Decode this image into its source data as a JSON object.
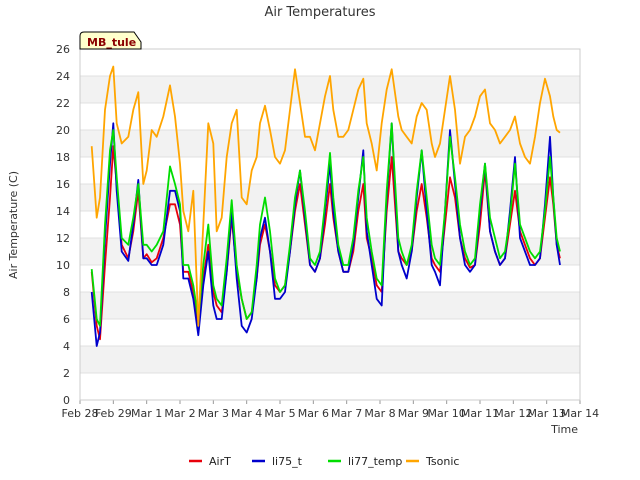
{
  "chart_data": {
    "type": "line",
    "title": "Air Temperatures",
    "ylabel": "Air Temperature (C)",
    "xlabel": "Time",
    "station_label": "MB_tule",
    "ylim": [
      0,
      26
    ],
    "yticks": [
      0,
      2,
      4,
      6,
      8,
      10,
      12,
      14,
      16,
      18,
      20,
      22,
      24,
      26
    ],
    "xlim": [
      0,
      15
    ],
    "xticks": [
      {
        "x": 0,
        "label": "Feb 28"
      },
      {
        "x": 1,
        "label": "Feb 29"
      },
      {
        "x": 2,
        "label": "Mar 1"
      },
      {
        "x": 3,
        "label": "Mar 2"
      },
      {
        "x": 4,
        "label": "Mar 3"
      },
      {
        "x": 5,
        "label": "Mar 4"
      },
      {
        "x": 6,
        "label": "Mar 5"
      },
      {
        "x": 7,
        "label": "Mar 6"
      },
      {
        "x": 8,
        "label": "Mar 7"
      },
      {
        "x": 9,
        "label": "Mar 8"
      },
      {
        "x": 10,
        "label": "Mar 9"
      },
      {
        "x": 11,
        "label": "Mar 10"
      },
      {
        "x": 12,
        "label": "Mar 11"
      },
      {
        "x": 13,
        "label": "Mar 12"
      },
      {
        "x": 14,
        "label": "Mar 13"
      },
      {
        "x": 15,
        "label": "Mar 14"
      }
    ],
    "grid": "alternating horizontal bands",
    "legend_position": "bottom",
    "series": [
      {
        "name": "AirT",
        "color": "#e8000b",
        "x": [
          0.35,
          0.5,
          0.6,
          0.75,
          0.9,
          1.0,
          1.1,
          1.25,
          1.45,
          1.6,
          1.75,
          1.9,
          2.0,
          2.15,
          2.3,
          2.5,
          2.7,
          2.85,
          3.0,
          3.1,
          3.25,
          3.4,
          3.55,
          3.7,
          3.85,
          4.0,
          4.1,
          4.25,
          4.4,
          4.55,
          4.7,
          4.85,
          5.0,
          5.15,
          5.3,
          5.4,
          5.55,
          5.7,
          5.85,
          6.0,
          6.15,
          6.3,
          6.45,
          6.6,
          6.75,
          6.9,
          7.05,
          7.2,
          7.35,
          7.5,
          7.6,
          7.75,
          7.9,
          8.05,
          8.2,
          8.35,
          8.5,
          8.6,
          8.75,
          8.9,
          9.05,
          9.2,
          9.35,
          9.55,
          9.65,
          9.8,
          9.95,
          10.1,
          10.25,
          10.4,
          10.55,
          10.65,
          10.8,
          10.95,
          11.1,
          11.25,
          11.4,
          11.55,
          11.7,
          11.85,
          12.0,
          12.15,
          12.3,
          12.45,
          12.6,
          12.75,
          12.9,
          13.05,
          13.2,
          13.35,
          13.5,
          13.65,
          13.8,
          13.95,
          14.1,
          14.2,
          14.3,
          14.4
        ],
        "y": [
          9.5,
          5.5,
          4.5,
          10.0,
          15.0,
          18.8,
          16.0,
          11.5,
          10.5,
          12.5,
          15.5,
          10.5,
          10.8,
          10.2,
          10.5,
          12.0,
          14.5,
          14.5,
          13.0,
          9.5,
          9.5,
          8.0,
          5.5,
          9.0,
          11.5,
          8.0,
          7.0,
          6.5,
          9.5,
          13.5,
          9.5,
          7.5,
          6.0,
          6.5,
          9.0,
          11.5,
          13.0,
          11.0,
          8.5,
          8.0,
          8.5,
          11.0,
          14.0,
          16.0,
          13.0,
          10.0,
          9.5,
          10.5,
          13.0,
          16.0,
          13.5,
          11.0,
          9.5,
          9.5,
          11.0,
          14.0,
          16.0,
          12.0,
          10.5,
          8.5,
          8.0,
          14.0,
          18.0,
          11.0,
          10.5,
          10.0,
          11.0,
          14.0,
          16.0,
          13.5,
          10.5,
          10.0,
          9.5,
          13.0,
          16.5,
          15.0,
          12.0,
          10.5,
          9.8,
          10.0,
          13.0,
          17.0,
          12.5,
          11.0,
          10.0,
          10.5,
          13.0,
          15.5,
          12.5,
          11.5,
          10.5,
          10.0,
          10.5,
          13.5,
          16.5,
          14.5,
          11.5,
          10.5
        ]
      },
      {
        "name": "li75_t",
        "color": "#0000cc",
        "x": [
          0.35,
          0.5,
          0.6,
          0.75,
          0.9,
          1.0,
          1.1,
          1.25,
          1.45,
          1.6,
          1.75,
          1.9,
          2.0,
          2.15,
          2.3,
          2.5,
          2.7,
          2.85,
          3.0,
          3.1,
          3.25,
          3.4,
          3.55,
          3.7,
          3.85,
          4.0,
          4.1,
          4.25,
          4.4,
          4.55,
          4.7,
          4.85,
          5.0,
          5.15,
          5.3,
          5.4,
          5.55,
          5.7,
          5.85,
          6.0,
          6.15,
          6.3,
          6.45,
          6.6,
          6.75,
          6.9,
          7.05,
          7.2,
          7.35,
          7.5,
          7.6,
          7.75,
          7.9,
          8.05,
          8.2,
          8.35,
          8.5,
          8.6,
          8.75,
          8.9,
          9.05,
          9.2,
          9.35,
          9.55,
          9.65,
          9.8,
          9.95,
          10.1,
          10.25,
          10.4,
          10.55,
          10.65,
          10.8,
          10.95,
          11.1,
          11.25,
          11.4,
          11.55,
          11.7,
          11.85,
          12.0,
          12.15,
          12.3,
          12.45,
          12.6,
          12.75,
          12.9,
          13.05,
          13.2,
          13.35,
          13.5,
          13.65,
          13.8,
          13.95,
          14.1,
          14.2,
          14.3,
          14.4
        ],
        "y": [
          8.0,
          4.0,
          5.0,
          12.0,
          17.5,
          20.5,
          15.5,
          11.0,
          10.3,
          13.0,
          16.3,
          10.5,
          10.5,
          10.0,
          10.0,
          11.5,
          15.5,
          15.5,
          14.0,
          9.0,
          9.0,
          7.5,
          4.8,
          8.5,
          11.0,
          7.0,
          6.0,
          6.0,
          9.5,
          14.0,
          9.0,
          5.5,
          5.0,
          6.0,
          9.0,
          12.0,
          13.5,
          11.0,
          7.5,
          7.5,
          8.0,
          11.0,
          14.5,
          17.0,
          13.5,
          10.0,
          9.5,
          10.5,
          14.0,
          17.5,
          14.0,
          11.0,
          9.5,
          9.5,
          11.5,
          15.0,
          18.5,
          12.5,
          10.0,
          7.5,
          7.0,
          15.0,
          20.5,
          11.0,
          10.0,
          9.0,
          11.0,
          15.0,
          18.5,
          14.0,
          10.0,
          9.5,
          8.5,
          14.0,
          20.0,
          16.0,
          12.0,
          10.0,
          9.5,
          10.0,
          14.0,
          17.5,
          12.5,
          11.0,
          10.0,
          10.5,
          14.0,
          18.0,
          12.0,
          11.0,
          10.0,
          10.0,
          10.5,
          14.5,
          19.5,
          15.0,
          11.5,
          10.0
        ]
      },
      {
        "name": "li77_temp",
        "color": "#00dd00",
        "x": [
          0.35,
          0.5,
          0.6,
          0.75,
          0.9,
          1.0,
          1.1,
          1.25,
          1.45,
          1.6,
          1.75,
          1.9,
          2.0,
          2.15,
          2.3,
          2.5,
          2.7,
          2.85,
          3.0,
          3.1,
          3.25,
          3.4,
          3.55,
          3.7,
          3.85,
          4.0,
          4.1,
          4.25,
          4.4,
          4.55,
          4.7,
          4.85,
          5.0,
          5.15,
          5.3,
          5.4,
          5.55,
          5.7,
          5.85,
          6.0,
          6.15,
          6.3,
          6.45,
          6.6,
          6.75,
          6.9,
          7.05,
          7.2,
          7.35,
          7.5,
          7.6,
          7.75,
          7.9,
          8.05,
          8.2,
          8.35,
          8.5,
          8.6,
          8.75,
          8.9,
          9.05,
          9.2,
          9.35,
          9.55,
          9.65,
          9.8,
          9.95,
          10.1,
          10.25,
          10.4,
          10.55,
          10.65,
          10.8,
          10.95,
          11.1,
          11.25,
          11.4,
          11.55,
          11.7,
          11.85,
          12.0,
          12.15,
          12.3,
          12.45,
          12.6,
          12.75,
          12.9,
          13.05,
          13.2,
          13.35,
          13.5,
          13.65,
          13.8,
          13.95,
          14.1,
          14.2,
          14.3,
          14.4
        ],
        "y": [
          9.7,
          6.0,
          5.5,
          13.0,
          18.5,
          20.0,
          16.5,
          12.0,
          11.5,
          13.5,
          16.0,
          11.5,
          11.5,
          11.0,
          11.5,
          12.5,
          17.3,
          16.0,
          14.5,
          10.0,
          10.0,
          8.5,
          6.0,
          10.0,
          13.0,
          8.5,
          7.5,
          7.0,
          10.5,
          14.8,
          10.0,
          7.5,
          6.0,
          6.5,
          10.0,
          13.0,
          15.0,
          12.5,
          9.0,
          8.0,
          8.5,
          11.5,
          15.0,
          17.0,
          14.0,
          10.5,
          10.0,
          11.0,
          14.5,
          18.3,
          15.0,
          11.5,
          10.0,
          10.0,
          12.0,
          15.5,
          18.0,
          13.5,
          11.0,
          9.0,
          8.5,
          15.5,
          20.5,
          12.0,
          11.0,
          10.0,
          11.5,
          15.5,
          18.5,
          15.0,
          11.5,
          10.5,
          10.0,
          14.0,
          19.5,
          16.5,
          13.0,
          11.0,
          10.0,
          10.5,
          14.5,
          17.5,
          13.5,
          12.0,
          10.5,
          11.0,
          13.5,
          17.5,
          13.0,
          12.0,
          11.0,
          10.5,
          11.0,
          14.0,
          18.0,
          15.0,
          12.0,
          11.0
        ]
      },
      {
        "name": "Tsonic",
        "color": "#ffa500",
        "x": [
          0.35,
          0.5,
          0.6,
          0.75,
          0.9,
          1.0,
          1.1,
          1.25,
          1.45,
          1.6,
          1.75,
          1.9,
          2.0,
          2.15,
          2.3,
          2.5,
          2.7,
          2.85,
          3.0,
          3.1,
          3.25,
          3.4,
          3.55,
          3.7,
          3.85,
          4.0,
          4.1,
          4.25,
          4.4,
          4.55,
          4.7,
          4.85,
          5.0,
          5.15,
          5.3,
          5.4,
          5.55,
          5.7,
          5.85,
          6.0,
          6.15,
          6.3,
          6.45,
          6.6,
          6.75,
          6.9,
          7.05,
          7.2,
          7.35,
          7.5,
          7.6,
          7.75,
          7.9,
          8.05,
          8.2,
          8.35,
          8.5,
          8.6,
          8.75,
          8.9,
          9.05,
          9.2,
          9.35,
          9.55,
          9.65,
          9.8,
          9.95,
          10.1,
          10.25,
          10.4,
          10.55,
          10.65,
          10.8,
          10.95,
          11.1,
          11.25,
          11.4,
          11.55,
          11.7,
          11.85,
          12.0,
          12.15,
          12.3,
          12.45,
          12.6,
          12.75,
          12.9,
          13.05,
          13.2,
          13.35,
          13.5,
          13.65,
          13.8,
          13.95,
          14.1,
          14.2,
          14.3,
          14.4
        ],
        "y": [
          18.8,
          13.5,
          15.0,
          21.5,
          24.0,
          24.7,
          20.5,
          19.0,
          19.5,
          21.5,
          22.8,
          16.0,
          17.0,
          20.0,
          19.5,
          21.0,
          23.3,
          21.0,
          17.5,
          14.0,
          12.5,
          15.5,
          5.5,
          13.0,
          20.5,
          19.0,
          12.5,
          13.5,
          18.0,
          20.5,
          21.5,
          15.0,
          14.5,
          17.0,
          18.0,
          20.5,
          21.8,
          20.0,
          18.0,
          17.5,
          18.5,
          21.5,
          24.5,
          22.0,
          19.5,
          19.5,
          18.5,
          20.5,
          22.5,
          24.0,
          21.5,
          19.5,
          19.5,
          20.0,
          21.5,
          23.0,
          23.8,
          20.5,
          19.0,
          17.0,
          20.5,
          23.0,
          24.5,
          21.0,
          20.0,
          19.5,
          19.0,
          21.0,
          22.0,
          21.5,
          19.0,
          18.0,
          19.0,
          21.5,
          24.0,
          21.5,
          17.5,
          19.5,
          20.0,
          21.0,
          22.5,
          23.0,
          20.5,
          20.0,
          19.0,
          19.5,
          20.0,
          21.0,
          19.0,
          18.0,
          17.5,
          19.5,
          22.0,
          23.8,
          22.5,
          21.0,
          20.0,
          19.8
        ]
      }
    ]
  }
}
